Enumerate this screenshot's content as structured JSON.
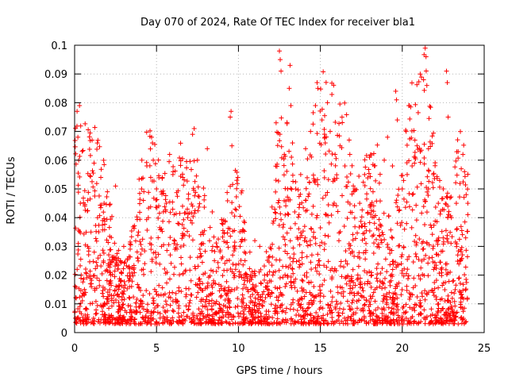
{
  "chart_data": {
    "type": "scatter",
    "title": "Day 070 of 2024, Rate Of TEC Index for receiver bla1",
    "xlabel": "GPS time / hours",
    "ylabel": "ROTI / TECUs",
    "xlim": [
      0,
      25
    ],
    "ylim": [
      0,
      0.1
    ],
    "xticks": [
      "0",
      "5",
      "10",
      "15",
      "20",
      "25"
    ],
    "yticks": [
      "0",
      "0.01",
      "0.02",
      "0.03",
      "0.04",
      "0.05",
      "0.06",
      "0.07",
      "0.08",
      "0.09",
      "0.1"
    ],
    "grid": true,
    "marker": "plus",
    "series": [
      {
        "name": "ROTI",
        "color": "#ff0000",
        "points": [
          [
            0.05,
            0.005
          ],
          [
            0.1,
            0.012
          ],
          [
            0.15,
            0.077
          ],
          [
            0.2,
            0.068
          ],
          [
            0.25,
            0.06
          ],
          [
            0.3,
            0.079
          ],
          [
            0.35,
            0.045
          ],
          [
            0.4,
            0.02
          ],
          [
            0.6,
            0.015
          ],
          [
            0.8,
            0.03
          ],
          [
            1.0,
            0.035
          ],
          [
            1.2,
            0.028
          ],
          [
            1.4,
            0.04
          ],
          [
            1.6,
            0.054
          ],
          [
            1.8,
            0.045
          ],
          [
            2.0,
            0.049
          ],
          [
            2.2,
            0.02
          ],
          [
            2.5,
            0.051
          ],
          [
            2.8,
            0.025
          ],
          [
            3.0,
            0.03
          ],
          [
            3.3,
            0.018
          ],
          [
            3.6,
            0.022
          ],
          [
            3.9,
            0.035
          ],
          [
            4.2,
            0.046
          ],
          [
            4.5,
            0.04
          ],
          [
            4.7,
            0.068
          ],
          [
            4.75,
            0.066
          ],
          [
            4.8,
            0.06
          ],
          [
            5.0,
            0.05
          ],
          [
            5.3,
            0.03
          ],
          [
            5.6,
            0.045
          ],
          [
            5.8,
            0.062
          ],
          [
            6.0,
            0.055
          ],
          [
            6.3,
            0.038
          ],
          [
            6.6,
            0.054
          ],
          [
            6.9,
            0.04
          ],
          [
            7.2,
            0.069
          ],
          [
            7.3,
            0.071
          ],
          [
            7.5,
            0.06
          ],
          [
            7.8,
            0.035
          ],
          [
            8.1,
            0.064
          ],
          [
            8.4,
            0.042
          ],
          [
            8.7,
            0.03
          ],
          [
            9.0,
            0.038
          ],
          [
            9.3,
            0.025
          ],
          [
            9.5,
            0.075
          ],
          [
            9.55,
            0.077
          ],
          [
            9.6,
            0.065
          ],
          [
            9.8,
            0.043
          ],
          [
            10.1,
            0.03
          ],
          [
            10.4,
            0.025
          ],
          [
            10.7,
            0.028
          ],
          [
            11.0,
            0.032
          ],
          [
            11.3,
            0.03
          ],
          [
            11.6,
            0.02
          ],
          [
            11.9,
            0.018
          ],
          [
            12.1,
            0.02
          ],
          [
            12.3,
            0.073
          ],
          [
            12.5,
            0.098
          ],
          [
            12.55,
            0.095
          ],
          [
            12.6,
            0.091
          ],
          [
            12.8,
            0.062
          ],
          [
            13.0,
            0.05
          ],
          [
            13.1,
            0.085
          ],
          [
            13.15,
            0.093
          ],
          [
            13.2,
            0.079
          ],
          [
            13.3,
            0.066
          ],
          [
            13.5,
            0.05
          ],
          [
            13.8,
            0.055
          ],
          [
            14.1,
            0.064
          ],
          [
            14.4,
            0.07
          ],
          [
            14.7,
            0.079
          ],
          [
            14.8,
            0.087
          ],
          [
            14.85,
            0.085
          ],
          [
            15.1,
            0.074
          ],
          [
            15.3,
            0.066
          ],
          [
            15.6,
            0.07
          ],
          [
            15.9,
            0.062
          ],
          [
            16.2,
            0.065
          ],
          [
            16.5,
            0.058
          ],
          [
            16.8,
            0.062
          ],
          [
            17.1,
            0.05
          ],
          [
            17.4,
            0.045
          ],
          [
            17.7,
            0.055
          ],
          [
            18.0,
            0.061
          ],
          [
            18.3,
            0.058
          ],
          [
            18.6,
            0.052
          ],
          [
            18.9,
            0.06
          ],
          [
            19.1,
            0.068
          ],
          [
            19.4,
            0.058
          ],
          [
            19.6,
            0.084
          ],
          [
            19.65,
            0.081
          ],
          [
            19.7,
            0.074
          ],
          [
            20.0,
            0.05
          ],
          [
            20.3,
            0.055
          ],
          [
            20.6,
            0.058
          ],
          [
            20.9,
            0.065
          ],
          [
            21.1,
            0.063
          ],
          [
            21.3,
            0.088
          ],
          [
            21.4,
            0.099
          ],
          [
            21.45,
            0.096
          ],
          [
            21.5,
            0.086
          ],
          [
            21.6,
            0.05
          ],
          [
            21.9,
            0.055
          ],
          [
            22.2,
            0.045
          ],
          [
            22.5,
            0.05
          ],
          [
            22.7,
            0.091
          ],
          [
            22.75,
            0.087
          ],
          [
            22.8,
            0.075
          ],
          [
            23.0,
            0.04
          ],
          [
            23.3,
            0.045
          ],
          [
            23.6,
            0.057
          ],
          [
            23.7,
            0.062
          ],
          [
            23.8,
            0.056
          ],
          [
            23.9,
            0.048
          ],
          [
            24.0,
            0.045
          ]
        ]
      }
    ]
  }
}
